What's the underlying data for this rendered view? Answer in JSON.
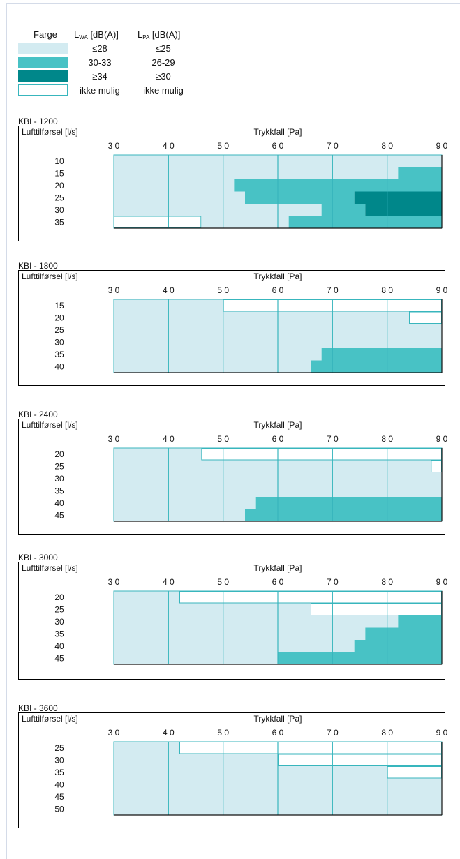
{
  "legend": {
    "color_header": "Farge",
    "lwa_header": {
      "main": "L",
      "sub": "WA",
      "unit": " [dB(A)]"
    },
    "lpa_header": {
      "main": "L",
      "sub": "PA",
      "unit": " [dB(A)]"
    },
    "rows": [
      {
        "color": "#d3ebf1",
        "lwa": "≤28",
        "lpa": "≤25"
      },
      {
        "color": "#48c2c5",
        "lwa": "30-33",
        "lpa": "26-29"
      },
      {
        "color": "#00878a",
        "lwa": "≥34",
        "lpa": "≥30"
      },
      {
        "color": "#ffffff",
        "lwa": "ikke mulig",
        "lpa": "ikke mulig"
      }
    ]
  },
  "chart_data": [
    {
      "type": "heatmap",
      "title": "KBI - 1200",
      "ylabel": "Lufttilførsel [l/s]",
      "xlabel": "Trykkfall [Pa]",
      "x_ticks": [
        "3 0",
        "4 0",
        "5 0",
        "6 0",
        "7 0",
        "8 0",
        "9 0"
      ],
      "xlim": [
        30,
        90
      ],
      "rows": [
        {
          "y": "10",
          "segments": [
            {
              "from": 30,
              "to": 90,
              "level": 1
            }
          ]
        },
        {
          "y": "15",
          "segments": [
            {
              "from": 30,
              "to": 82,
              "level": 1
            },
            {
              "from": 82,
              "to": 90,
              "level": 2
            }
          ]
        },
        {
          "y": "20",
          "segments": [
            {
              "from": 30,
              "to": 52,
              "level": 1
            },
            {
              "from": 52,
              "to": 90,
              "level": 2
            }
          ]
        },
        {
          "y": "25",
          "segments": [
            {
              "from": 30,
              "to": 54,
              "level": 1
            },
            {
              "from": 54,
              "to": 74,
              "level": 2
            },
            {
              "from": 74,
              "to": 90,
              "level": 3
            }
          ]
        },
        {
          "y": "30",
          "segments": [
            {
              "from": 30,
              "to": 68,
              "level": 1
            },
            {
              "from": 68,
              "to": 76,
              "level": 2
            },
            {
              "from": 76,
              "to": 90,
              "level": 3
            }
          ]
        },
        {
          "y": "35",
          "segments": [
            {
              "from": 30,
              "to": 46,
              "level": 0
            },
            {
              "from": 46,
              "to": 62,
              "level": 1
            },
            {
              "from": 62,
              "to": 90,
              "level": 2
            }
          ]
        }
      ]
    },
    {
      "type": "heatmap",
      "title": "KBI - 1800",
      "ylabel": "Lufttilførsel [l/s]",
      "xlabel": "Trykkfall [Pa]",
      "x_ticks": [
        "3 0",
        "4 0",
        "5 0",
        "6 0",
        "7 0",
        "8 0",
        "9 0"
      ],
      "xlim": [
        30,
        90
      ],
      "rows": [
        {
          "y": "15",
          "segments": [
            {
              "from": 30,
              "to": 50,
              "level": 1
            },
            {
              "from": 50,
              "to": 90,
              "level": 0
            }
          ]
        },
        {
          "y": "20",
          "segments": [
            {
              "from": 30,
              "to": 84,
              "level": 1
            },
            {
              "from": 84,
              "to": 90,
              "level": 0
            }
          ]
        },
        {
          "y": "25",
          "segments": [
            {
              "from": 30,
              "to": 90,
              "level": 1
            }
          ]
        },
        {
          "y": "30",
          "segments": [
            {
              "from": 30,
              "to": 90,
              "level": 1
            }
          ]
        },
        {
          "y": "35",
          "segments": [
            {
              "from": 30,
              "to": 68,
              "level": 1
            },
            {
              "from": 68,
              "to": 90,
              "level": 2
            }
          ]
        },
        {
          "y": "40",
          "segments": [
            {
              "from": 30,
              "to": 66,
              "level": 1
            },
            {
              "from": 66,
              "to": 90,
              "level": 2
            }
          ]
        }
      ]
    },
    {
      "type": "heatmap",
      "title": "KBI - 2400",
      "ylabel": "Lufttilførsel [l/s]",
      "xlabel": "Trykkfall [Pa]",
      "x_ticks": [
        "3 0",
        "4 0",
        "5 0",
        "6 0",
        "7 0",
        "8 0",
        "9 0"
      ],
      "xlim": [
        30,
        90
      ],
      "rows": [
        {
          "y": "20",
          "segments": [
            {
              "from": 30,
              "to": 46,
              "level": 1
            },
            {
              "from": 46,
              "to": 90,
              "level": 0
            }
          ]
        },
        {
          "y": "25",
          "segments": [
            {
              "from": 30,
              "to": 88,
              "level": 1
            },
            {
              "from": 88,
              "to": 90,
              "level": 0
            }
          ]
        },
        {
          "y": "30",
          "segments": [
            {
              "from": 30,
              "to": 90,
              "level": 1
            }
          ]
        },
        {
          "y": "35",
          "segments": [
            {
              "from": 30,
              "to": 90,
              "level": 1
            }
          ]
        },
        {
          "y": "40",
          "segments": [
            {
              "from": 30,
              "to": 56,
              "level": 1
            },
            {
              "from": 56,
              "to": 90,
              "level": 2
            }
          ]
        },
        {
          "y": "45",
          "segments": [
            {
              "from": 30,
              "to": 54,
              "level": 1
            },
            {
              "from": 54,
              "to": 90,
              "level": 2
            }
          ]
        }
      ]
    },
    {
      "type": "heatmap",
      "title": "KBI - 3000",
      "ylabel": "Lufttilførsel [l/s]",
      "xlabel": "Trykkfall [Pa]",
      "x_ticks": [
        "3 0",
        "4 0",
        "5 0",
        "6 0",
        "7 0",
        "8 0",
        "9 0"
      ],
      "xlim": [
        30,
        90
      ],
      "rows": [
        {
          "y": "20",
          "segments": [
            {
              "from": 30,
              "to": 42,
              "level": 1
            },
            {
              "from": 42,
              "to": 90,
              "level": 0
            }
          ]
        },
        {
          "y": "25",
          "segments": [
            {
              "from": 30,
              "to": 66,
              "level": 1
            },
            {
              "from": 66,
              "to": 90,
              "level": 0
            }
          ]
        },
        {
          "y": "30",
          "segments": [
            {
              "from": 30,
              "to": 82,
              "level": 1
            },
            {
              "from": 82,
              "to": 90,
              "level": 2
            }
          ]
        },
        {
          "y": "35",
          "segments": [
            {
              "from": 30,
              "to": 76,
              "level": 1
            },
            {
              "from": 76,
              "to": 90,
              "level": 2
            }
          ]
        },
        {
          "y": "40",
          "segments": [
            {
              "from": 30,
              "to": 74,
              "level": 1
            },
            {
              "from": 74,
              "to": 90,
              "level": 2
            }
          ]
        },
        {
          "y": "45",
          "segments": [
            {
              "from": 30,
              "to": 60,
              "level": 1
            },
            {
              "from": 60,
              "to": 90,
              "level": 2
            }
          ]
        }
      ]
    },
    {
      "type": "heatmap",
      "title": "KBI - 3600",
      "ylabel": "Lufttilførsel [l/s]",
      "xlabel": "Trykkfall [Pa]",
      "x_ticks": [
        "3 0",
        "4 0",
        "5 0",
        "6 0",
        "7 0",
        "8 0",
        "9 0"
      ],
      "xlim": [
        30,
        90
      ],
      "rows": [
        {
          "y": "25",
          "segments": [
            {
              "from": 30,
              "to": 42,
              "level": 1
            },
            {
              "from": 42,
              "to": 90,
              "level": 0
            }
          ]
        },
        {
          "y": "30",
          "segments": [
            {
              "from": 30,
              "to": 60,
              "level": 1
            },
            {
              "from": 60,
              "to": 90,
              "level": 0
            }
          ]
        },
        {
          "y": "35",
          "segments": [
            {
              "from": 30,
              "to": 80,
              "level": 1
            },
            {
              "from": 80,
              "to": 90,
              "level": 0
            }
          ]
        },
        {
          "y": "40",
          "segments": [
            {
              "from": 30,
              "to": 90,
              "level": 1
            }
          ]
        },
        {
          "y": "45",
          "segments": [
            {
              "from": 30,
              "to": 90,
              "level": 1
            }
          ]
        },
        {
          "y": "50",
          "segments": [
            {
              "from": 30,
              "to": 90,
              "level": 1
            }
          ]
        }
      ]
    }
  ],
  "colors": {
    "level_0": "#ffffff",
    "level_1": "#d3ebf1",
    "level_2": "#48c2c5",
    "level_3": "#00878a",
    "grid_line": "#38b6bd",
    "page_frame": "#d4dbe8"
  }
}
